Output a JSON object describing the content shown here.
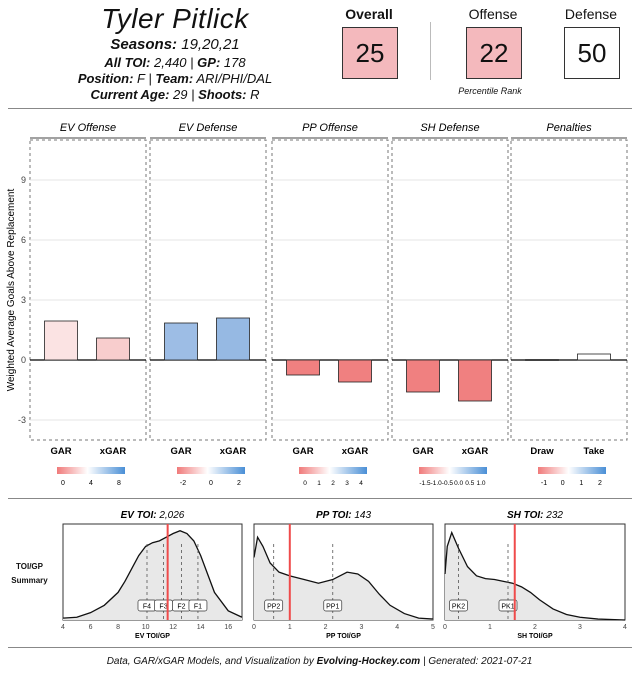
{
  "player": {
    "name": "Tyler Pitlick",
    "seasons_label": "Seasons:",
    "seasons": "19,20,21",
    "toi_label": "All TOI:",
    "toi": "2,440",
    "gp_label": "GP:",
    "gp": "178",
    "position_label": "Position:",
    "position": "F",
    "team_label": "Team:",
    "team": "ARI/PHI/DAL",
    "age_label": "Current Age:",
    "age": "29",
    "shoots_label": "Shoots:",
    "shoots": "R"
  },
  "percentiles": {
    "overall_label": "Overall",
    "overall": "25",
    "offense_label": "Offense",
    "offense": "22",
    "defense_label": "Defense",
    "defense": "50",
    "caption": "Percentile Rank",
    "colors": {
      "overall": "#f4b9bd",
      "offense": "#f4b9bd",
      "defense": "#ffffff"
    }
  },
  "chart_data": [
    {
      "type": "bar",
      "ylabel": "Weighted Average Goals Above Replacement",
      "ylim": [
        -4,
        11
      ],
      "yticks": [
        -3,
        0,
        3,
        6,
        9
      ],
      "panels": [
        {
          "title": "EV Offense",
          "categories": [
            "GAR",
            "xGAR"
          ],
          "values": [
            1.95,
            1.1
          ],
          "colors": [
            "#fbe3e3",
            "#f8cdcd"
          ],
          "legend_ticks": [
            "0",
            "4",
            "8"
          ]
        },
        {
          "title": "EV Defense",
          "categories": [
            "GAR",
            "xGAR"
          ],
          "values": [
            1.85,
            2.1
          ],
          "colors": [
            "#9dbde5",
            "#96b9e3"
          ],
          "legend_ticks": [
            "-2",
            "0",
            "2"
          ]
        },
        {
          "title": "PP Offense",
          "categories": [
            "GAR",
            "xGAR"
          ],
          "values": [
            -0.75,
            -1.1
          ],
          "colors": [
            "#f08080",
            "#f08080"
          ],
          "legend_ticks": [
            "0",
            "1",
            "2",
            "3",
            "4"
          ]
        },
        {
          "title": "SH Defense",
          "categories": [
            "GAR",
            "xGAR"
          ],
          "values": [
            -1.6,
            -2.05
          ],
          "colors": [
            "#f08080",
            "#f08080"
          ],
          "legend_ticks": [
            "-1.5",
            "-1.0",
            "-0.5",
            "0.0",
            "0.5",
            "1.0"
          ]
        },
        {
          "title": "Penalties",
          "categories": [
            "Draw",
            "Take"
          ],
          "values": [
            0.02,
            0.3
          ],
          "colors": [
            "#ffffff",
            "#ffffff"
          ],
          "legend_ticks": [
            "-1",
            "0",
            "1",
            "2"
          ]
        }
      ]
    },
    {
      "type": "area",
      "side_label_1": "TOI/GP",
      "side_label_2": "Summary",
      "panels": [
        {
          "title_label": "EV TOI:",
          "title_value": "2,026",
          "xlabel": "EV TOI/GP",
          "xlim": [
            4,
            17
          ],
          "xticks": [
            4,
            6,
            8,
            10,
            12,
            14,
            16
          ],
          "player_value": 11.6,
          "density_x": [
            4,
            5,
            6,
            7,
            8,
            8.5,
            9,
            9.5,
            10,
            10.5,
            11,
            11.5,
            12,
            12.5,
            13,
            13.5,
            14,
            14.5,
            15,
            16,
            17
          ],
          "density_y": [
            0.02,
            0.03,
            0.08,
            0.16,
            0.3,
            0.42,
            0.56,
            0.7,
            0.8,
            0.84,
            0.86,
            0.9,
            0.94,
            0.97,
            0.94,
            0.86,
            0.7,
            0.5,
            0.3,
            0.1,
            0.03
          ],
          "markers": [
            {
              "label": "F4",
              "x": 10.1
            },
            {
              "label": "F3",
              "x": 11.3
            },
            {
              "label": "F2",
              "x": 12.6
            },
            {
              "label": "F1",
              "x": 13.8
            }
          ]
        },
        {
          "title_label": "PP TOI:",
          "title_value": "143",
          "xlabel": "PP TOI/GP",
          "xlim": [
            0,
            5
          ],
          "xticks": [
            0,
            1,
            2,
            3,
            4,
            5
          ],
          "player_value": 1.0,
          "density_x": [
            0,
            0.1,
            0.25,
            0.45,
            0.7,
            1.0,
            1.4,
            1.8,
            2.2,
            2.6,
            2.9,
            3.2,
            3.5,
            3.8,
            4.2,
            4.6,
            5
          ],
          "density_y": [
            0.68,
            0.9,
            0.8,
            0.62,
            0.52,
            0.48,
            0.44,
            0.4,
            0.44,
            0.52,
            0.5,
            0.42,
            0.28,
            0.16,
            0.07,
            0.02,
            0.01
          ],
          "markers": [
            {
              "label": "PP2",
              "x": 0.55
            },
            {
              "label": "PP1",
              "x": 2.2
            }
          ]
        },
        {
          "title_label": "SH TOI:",
          "title_value": "232",
          "xlabel": "SH TOI/GP",
          "xlim": [
            0,
            4
          ],
          "xticks": [
            0,
            1,
            2,
            3,
            4
          ],
          "player_value": 1.55,
          "density_x": [
            0,
            0.05,
            0.15,
            0.3,
            0.5,
            0.7,
            0.9,
            1.1,
            1.3,
            1.5,
            1.7,
            1.9,
            2.1,
            2.4,
            2.7,
            3.0,
            3.4,
            4
          ],
          "density_y": [
            0.5,
            0.8,
            0.95,
            0.78,
            0.58,
            0.48,
            0.45,
            0.44,
            0.42,
            0.4,
            0.36,
            0.3,
            0.22,
            0.12,
            0.06,
            0.03,
            0.01,
            0.0
          ],
          "markers": [
            {
              "label": "PK2",
              "x": 0.3
            },
            {
              "label": "PK1",
              "x": 1.4
            }
          ]
        }
      ]
    }
  ],
  "footer": {
    "text_1": "Data, GAR/xGAR Models, and Visualization by ",
    "site": "Evolving-Hockey.com",
    "text_2": " | Generated: ",
    "date": "2021-07-21"
  }
}
